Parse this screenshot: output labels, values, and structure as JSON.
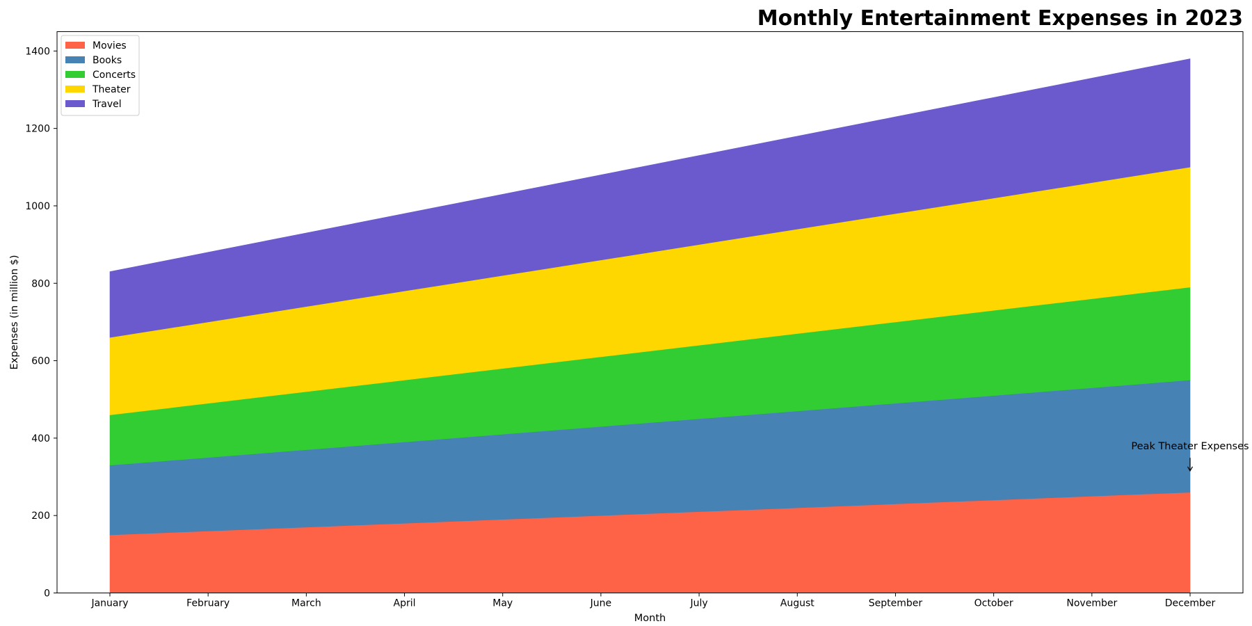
{
  "chart_data": {
    "type": "area",
    "stacked": true,
    "title": "Monthly Entertainment Expenses in 2023",
    "xlabel": "Month",
    "ylabel": "Expenses (in million $)",
    "categories": [
      "January",
      "February",
      "March",
      "April",
      "May",
      "June",
      "July",
      "August",
      "September",
      "October",
      "November",
      "December"
    ],
    "ylim": [
      0,
      1450
    ],
    "yticks": [
      0,
      200,
      400,
      600,
      800,
      1000,
      1200,
      1400
    ],
    "grid": false,
    "legend_position": "top-left",
    "series": [
      {
        "name": "Movies",
        "color": "#FF6347",
        "values": [
          150,
          160,
          170,
          180,
          190,
          200,
          210,
          220,
          230,
          240,
          250,
          260
        ]
      },
      {
        "name": "Books",
        "color": "#4682B4",
        "values": [
          180,
          190,
          200,
          210,
          220,
          230,
          240,
          250,
          260,
          270,
          280,
          290
        ]
      },
      {
        "name": "Concerts",
        "color": "#32CD32",
        "values": [
          130,
          140,
          150,
          160,
          170,
          180,
          190,
          200,
          210,
          220,
          230,
          240
        ]
      },
      {
        "name": "Theater",
        "color": "#FFD700",
        "values": [
          200,
          210,
          220,
          230,
          240,
          250,
          260,
          270,
          280,
          290,
          300,
          310
        ]
      },
      {
        "name": "Travel",
        "color": "#6A5ACD",
        "values": [
          170,
          180,
          190,
          200,
          210,
          220,
          230,
          240,
          250,
          260,
          270,
          280
        ]
      }
    ],
    "annotations": [
      {
        "text": "Peak Theater Expenses",
        "x": "December",
        "y": 310,
        "text_y": 360
      }
    ]
  }
}
